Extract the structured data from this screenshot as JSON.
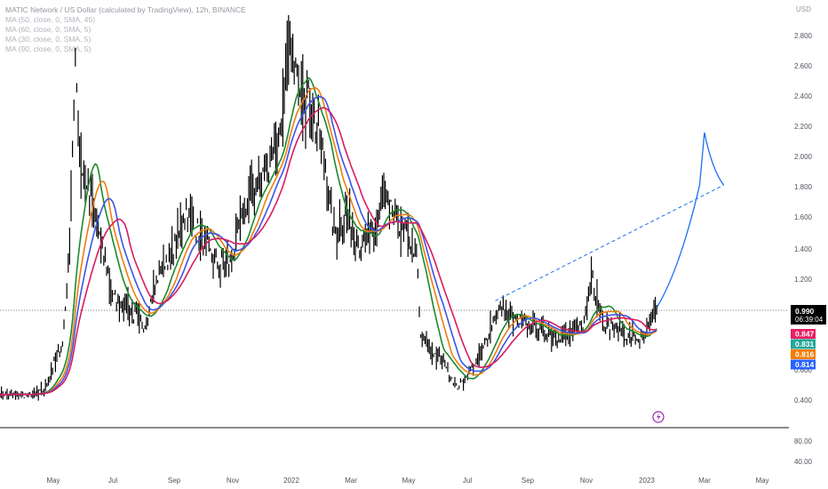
{
  "header": {
    "title": "MATIC Network / US Dollar (calculated by TradingView), 12h, BINANCE",
    "indicators": [
      "MA (50, close, 0, SMA, 45)",
      "MA (60, close, 0, SMA, 5)",
      "MA (30, close, 0, SMA, 5)",
      "MA (90, close, 0, SMA, 5)"
    ],
    "currency": "USD"
  },
  "price_axis": {
    "ticks": [
      "2.800",
      "2.600",
      "2.400",
      "2.200",
      "2.000",
      "1.800",
      "1.600",
      "1.400",
      "1.200",
      "1.000",
      "0.800",
      "0.600",
      "0.400"
    ],
    "volume_ticks": [
      "80.00",
      "40.00"
    ]
  },
  "badges": {
    "current_price": "0.990",
    "countdown": "06:39:04",
    "ma_values": [
      {
        "value": "0.847",
        "color": "#e91e63"
      },
      {
        "value": "0.831",
        "color": "#26a69a"
      },
      {
        "value": "0.816",
        "color": "#f57c00"
      },
      {
        "value": "0.814",
        "color": "#2962ff"
      }
    ]
  },
  "time_axis": [
    "May",
    "Jul",
    "Sep",
    "Nov",
    "2022",
    "Mar",
    "May",
    "Jul",
    "Sep",
    "Nov",
    "2023",
    "Mar",
    "May"
  ],
  "colors": {
    "candles": "#000000",
    "ma_green": "#1b8a2e",
    "ma_orange": "#ef7d11",
    "ma_blue": "#3a55e8",
    "ma_pink": "#d81b60",
    "projection": "#1e6ff2",
    "trendline": "#1e6ff2"
  },
  "chart_data": {
    "type": "line",
    "title": "MATIC Network / US Dollar (calculated by TradingView), 12h, BINANCE",
    "xlabel": "",
    "ylabel": "",
    "ylim": [
      0.3,
      2.95
    ],
    "x": [
      "2021-03-01",
      "2021-03-30",
      "2021-04-15",
      "2021-05-05",
      "2021-05-12",
      "2021-05-18",
      "2021-05-25",
      "2021-06-10",
      "2021-06-26",
      "2021-07-10",
      "2021-07-28",
      "2021-08-15",
      "2021-08-30",
      "2021-09-10",
      "2021-09-25",
      "2021-10-10",
      "2021-10-25",
      "2021-11-05",
      "2021-11-20",
      "2021-12-05",
      "2021-12-20",
      "2021-12-27",
      "2022-01-03",
      "2022-01-15",
      "2022-02-01",
      "2022-02-10",
      "2022-02-25",
      "2022-03-10",
      "2022-03-25",
      "2022-04-03",
      "2022-04-15",
      "2022-04-30",
      "2022-05-08",
      "2022-05-11",
      "2022-05-20",
      "2022-06-05",
      "2022-06-18",
      "2022-06-28",
      "2022-07-15",
      "2022-07-28",
      "2022-08-05",
      "2022-08-15",
      "2022-08-30",
      "2022-09-15",
      "2022-09-30",
      "2022-10-15",
      "2022-10-28",
      "2022-11-06",
      "2022-11-09",
      "2022-11-18",
      "2022-12-01",
      "2022-12-15",
      "2022-12-30",
      "2023-01-06",
      "2023-01-12"
    ],
    "series": [
      {
        "name": "",
        "values": [
          0.41,
          0.4,
          0.43,
          0.75,
          1.35,
          2.6,
          1.9,
          1.55,
          1.05,
          1.0,
          0.85,
          1.25,
          1.4,
          1.65,
          1.45,
          1.3,
          1.25,
          1.55,
          1.8,
          1.95,
          2.25,
          2.75,
          2.5,
          2.4,
          1.95,
          1.5,
          1.6,
          1.4,
          1.5,
          1.75,
          1.55,
          1.45,
          1.3,
          0.8,
          0.7,
          0.63,
          0.45,
          0.52,
          0.7,
          0.95,
          0.98,
          0.9,
          0.87,
          0.83,
          0.79,
          0.82,
          0.86,
          1.25,
          1.08,
          0.89,
          0.84,
          0.79,
          0.77,
          0.9,
          0.99
        ]
      }
    ],
    "projection": {
      "x": [
        "2023-01-12",
        "2023-02-05",
        "2023-02-25",
        "2023-03-02",
        "2023-03-10",
        "2023-03-22"
      ],
      "values": [
        0.99,
        1.25,
        1.8,
        2.15,
        1.9,
        1.8
      ]
    },
    "trendline": {
      "x": [
        "2022-07-28",
        "2023-03-22"
      ],
      "values": [
        1.03,
        1.8
      ]
    }
  }
}
